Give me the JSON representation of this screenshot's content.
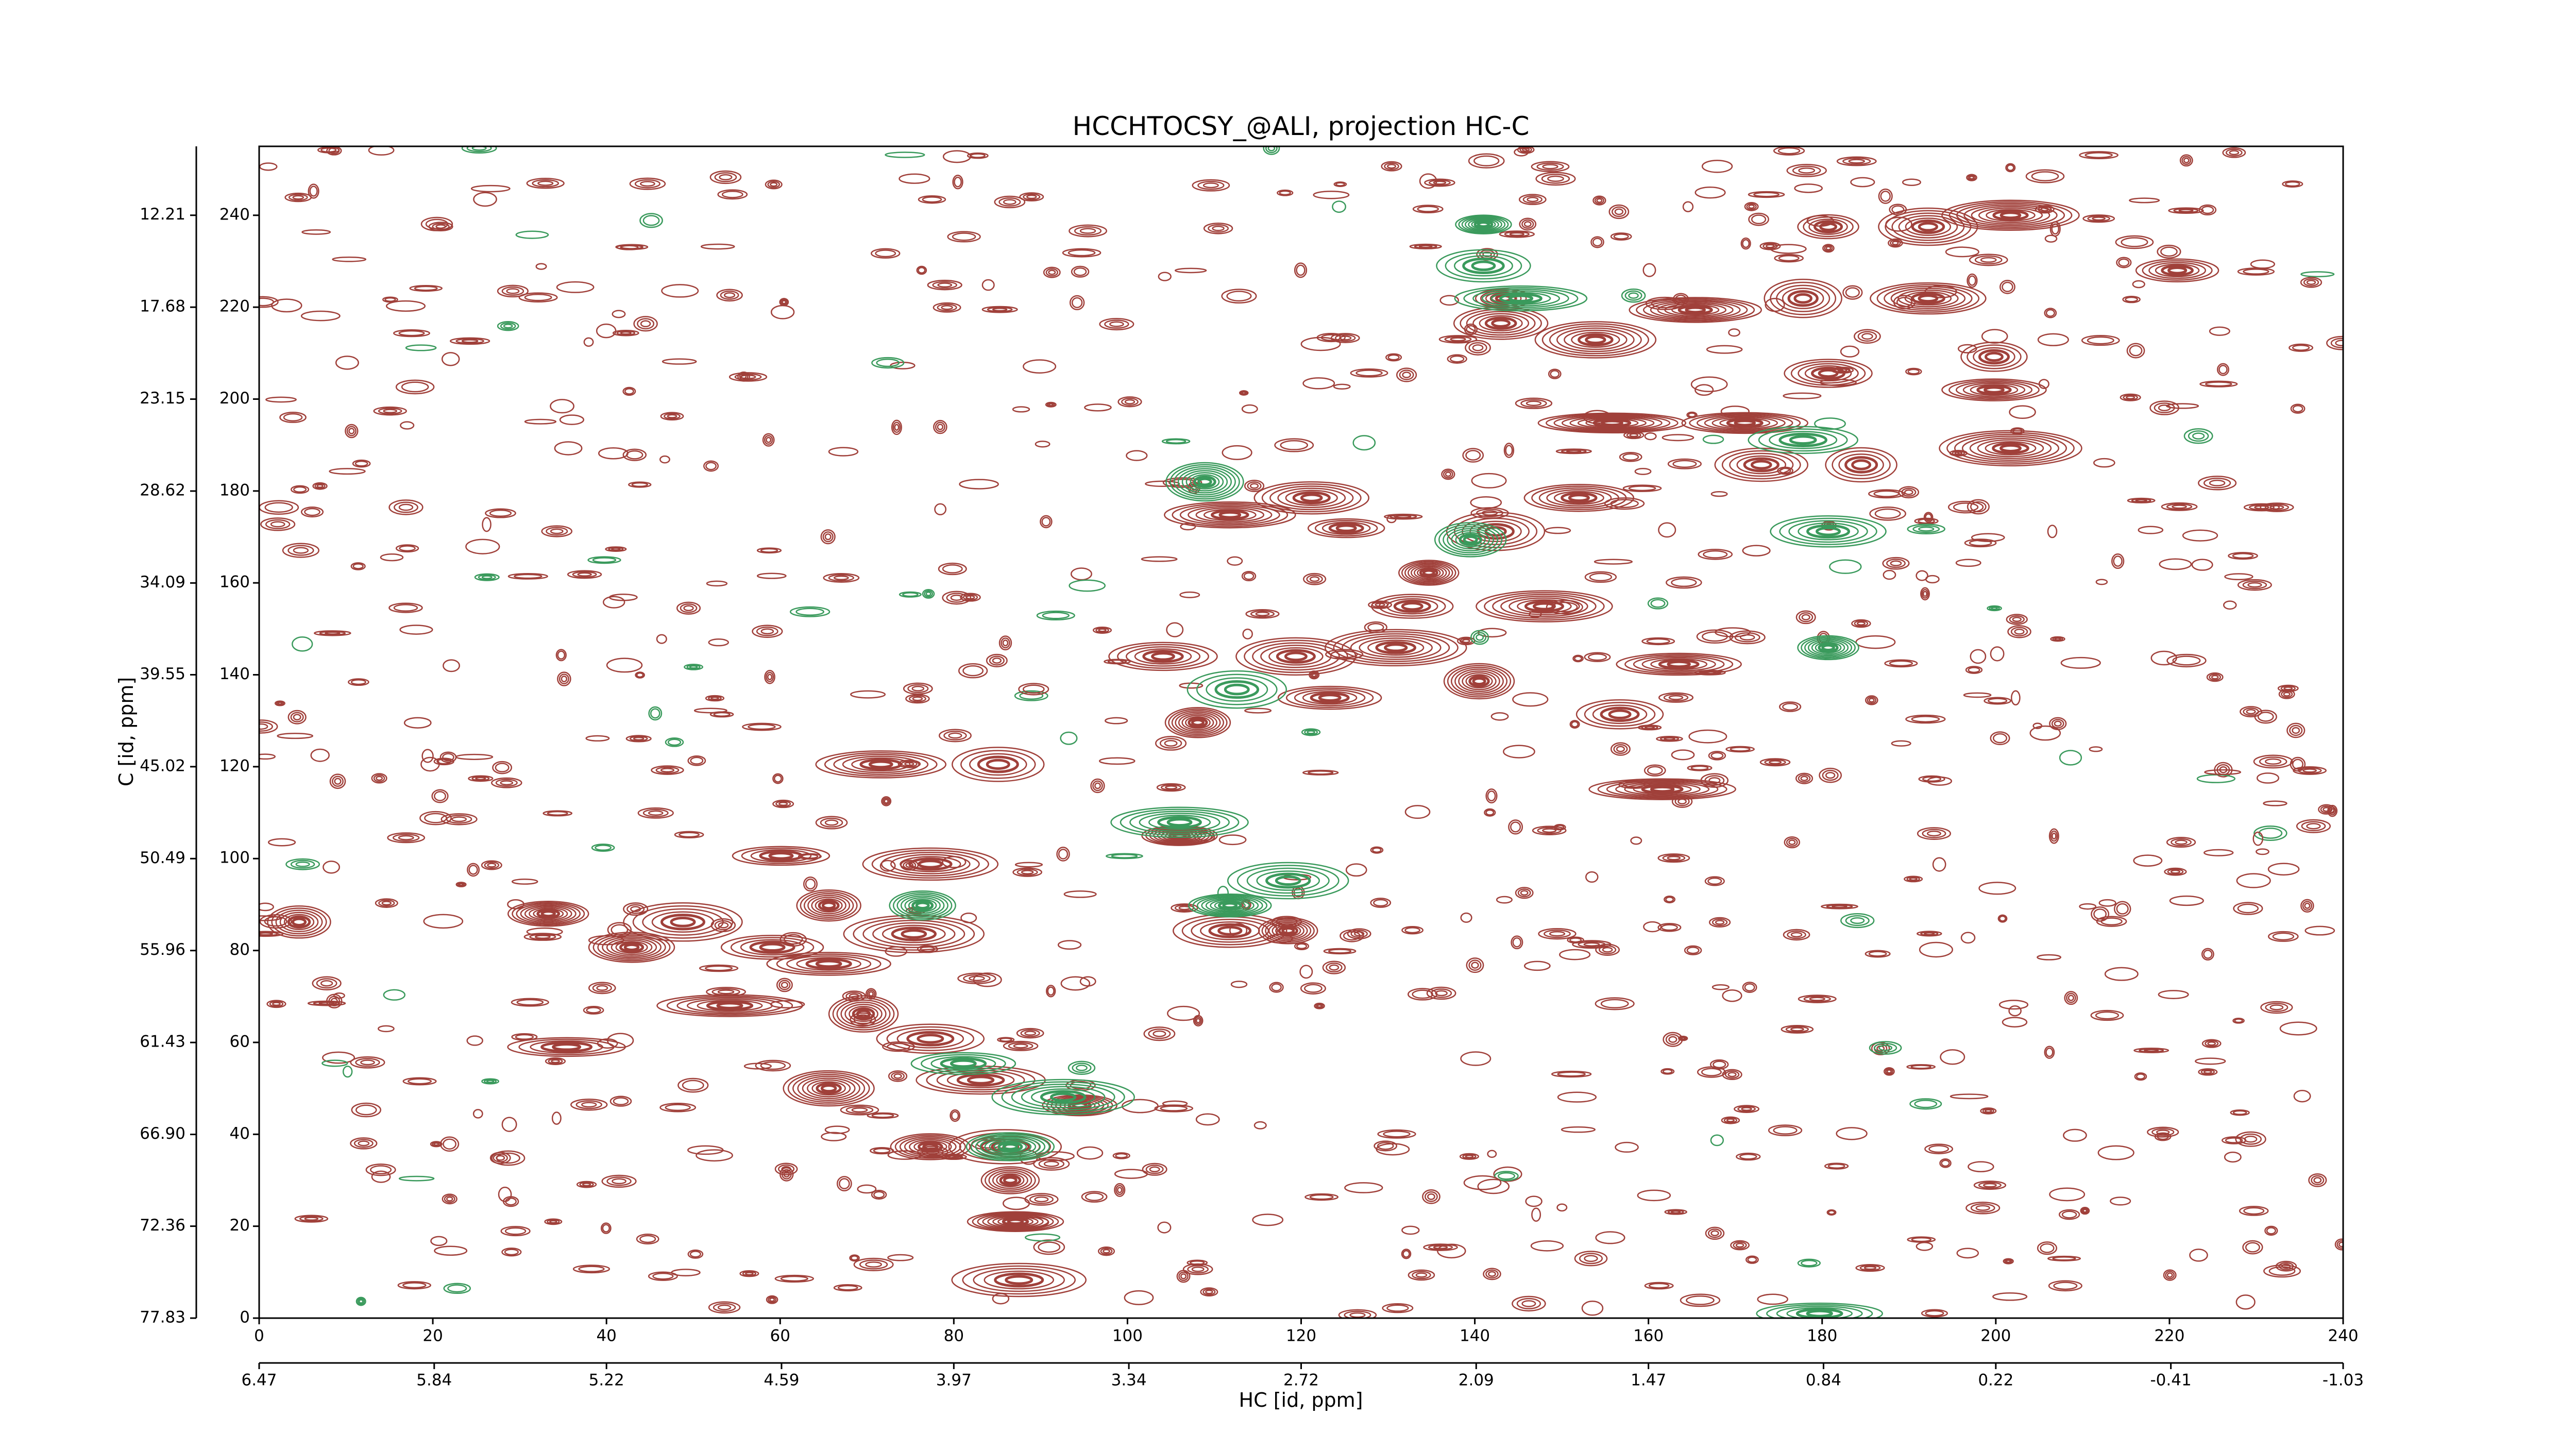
{
  "chart_data": {
    "type": "contour",
    "title": "HCCHTOCSY_@ALI, projection HC-C",
    "x_label": "HC [id, ppm]",
    "y_label": "C [id, ppm]",
    "xlim": [
      0,
      240
    ],
    "xticks": [
      0,
      20,
      40,
      60,
      80,
      100,
      120,
      140,
      160,
      180,
      200,
      220,
      240
    ],
    "x2lim": [
      6.47,
      -1.03
    ],
    "x2ticks": [
      6.47,
      5.84,
      5.22,
      4.59,
      3.97,
      3.34,
      2.72,
      2.09,
      1.47,
      0.84,
      0.22,
      -0.41,
      -1.03
    ],
    "ylim": [
      0,
      255
    ],
    "yticks": [
      0,
      20,
      40,
      60,
      80,
      100,
      120,
      140,
      160,
      180,
      200,
      220,
      240
    ],
    "y2lim": [
      77.83,
      8.11
    ],
    "y2ticks": [
      77.83,
      72.36,
      {
        "value": 66.9,
        "label": "66.90"
      },
      61.43,
      55.96,
      50.49,
      45.02,
      39.55,
      34.09,
      28.62,
      23.15,
      17.68,
      12.21
    ],
    "series": [
      {
        "color": "#a0403a",
        "x": [
          143.3,
          143,
          165.4,
          177.8,
          192.2,
          180.7,
          192.2,
          201.7,
          220.9,
          153.9,
          199.8,
          199.8,
          201.7,
          180.7,
          171.1,
          184.5,
          152,
          155.8,
          173,
          111.8,
          125.2,
          121.2,
          134.7,
          142.4,
          148,
          132.8,
          119.4,
          108.1,
          123.3,
          130.9,
          156.7,
          163.5,
          140.5,
          104.1,
          161.6,
          85.1,
          71.6,
          106,
          111.8,
          118.5,
          60.1,
          77.3,
          33.3,
          48.8,
          65.6,
          59.1,
          75.4,
          42.9,
          65.6,
          69.6,
          77.3,
          54.2,
          65.6,
          83.1,
          94.5,
          85.9,
          86.5,
          87.1,
          87.5,
          77.3,
          35.4,
          4.6
        ],
        "y": [
          221.9,
          216.5,
          219.4,
          221.9,
          221.9,
          237.5,
          237.5,
          240,
          228,
          212.9,
          209.2,
          202,
          189.3,
          205.6,
          194.8,
          185.7,
          178.5,
          194.8,
          185.7,
          174.8,
          171.9,
          178.5,
          162.2,
          171.2,
          154.9,
          154.9,
          144,
          129.6,
          135,
          145.9,
          131.4,
          142.3,
          138.6,
          144,
          115.1,
          120.5,
          120.5,
          105,
          84.3,
          84.3,
          100.6,
          98.8,
          88,
          86.2,
          89.8,
          80.7,
          83.6,
          80.7,
          77.1,
          66.2,
          60.8,
          68,
          50,
          51.8,
          46.3,
          37.3,
          30,
          21,
          8.3,
          37.3,
          59,
          86.2
        ]
      },
      {
        "color": "#3a9a5c",
        "x": [
          141,
          141,
          145.3,
          108.9,
          180.7,
          180.7,
          112.6,
          106,
          111.8,
          118.5,
          76.4,
          81.1,
          92.6,
          86.5,
          179.7,
          139.5,
          177.8
        ],
        "y": [
          238,
          229,
          221.9,
          182,
          171.2,
          145.9,
          136.8,
          107.9,
          89.8,
          95.2,
          89.8,
          55.4,
          48.1,
          37.3,
          1,
          169.4,
          191.1
        ]
      }
    ]
  }
}
